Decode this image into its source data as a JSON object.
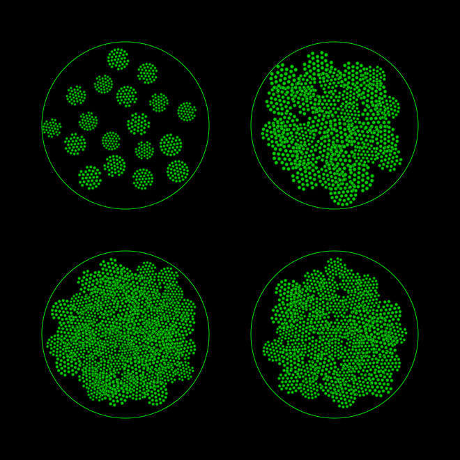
{
  "colors": {
    "background": "#000000",
    "outline": "#00e600",
    "fill": "#00cc00",
    "stroke": "#004d00"
  },
  "panels": [
    {
      "name": "panel-top-left",
      "cluster_count": 18,
      "cluster_spread": "sparse",
      "levels": 2
    },
    {
      "name": "panel-top-right",
      "cluster_count": 31,
      "cluster_spread": "medium",
      "levels": 2
    },
    {
      "name": "panel-bottom-left",
      "cluster_count": 60,
      "cluster_spread": "dense",
      "levels": 2
    },
    {
      "name": "panel-bottom-right",
      "cluster_count": 42,
      "cluster_spread": "medium-dense",
      "levels": 2
    }
  ]
}
